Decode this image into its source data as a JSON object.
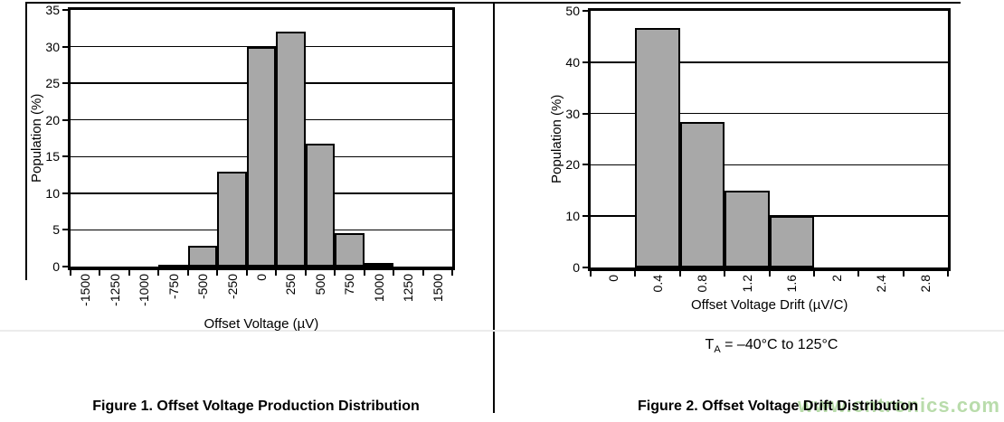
{
  "frame_color": "#000000",
  "watermark": {
    "text": "www.cntronics.com",
    "color": "#b9dcab"
  },
  "chart_data": [
    {
      "type": "bar",
      "title": "",
      "caption": "Figure 1. Offset Voltage Production Distribution",
      "xlabel": "Offset Voltage (µV)",
      "ylabel": "Population (%)",
      "categories": [
        "-1500",
        "-1250",
        "-1000",
        "-750",
        "-500",
        "-250",
        "0",
        "250",
        "500",
        "750",
        "1000",
        "1250",
        "1500"
      ],
      "values": [
        0,
        0,
        0,
        0.3,
        2.8,
        13,
        30,
        32,
        16.8,
        4.5,
        0.5,
        0,
        0
      ],
      "ylim": [
        0,
        35
      ],
      "yticks": [
        0,
        5,
        10,
        15,
        20,
        25,
        30,
        35
      ],
      "grid": true,
      "legend": "none",
      "bar_color": "#a8a8a8",
      "bar_align": "centered-on-tick-label"
    },
    {
      "type": "bar",
      "title": "",
      "caption": "Figure 2. Offset Voltage Drift Distribution",
      "xlabel": "Offset Voltage Drift (µV/C)",
      "ylabel": "Population (%)",
      "categories": [
        "0",
        "0.4",
        "0.8",
        "1.2",
        "1.6",
        "2",
        "2.4",
        "2.8"
      ],
      "values": [
        0,
        46.7,
        28.3,
        15,
        10,
        0,
        0,
        0
      ],
      "ylim": [
        0,
        50
      ],
      "yticks": [
        0,
        10,
        20,
        30,
        40,
        50
      ],
      "grid": true,
      "legend": "none",
      "bar_color": "#a8a8a8",
      "bar_align": "centered-on-tick-label",
      "condition": {
        "t": "T",
        "sub": "A",
        "rest": " = –40°C to 125°C"
      }
    }
  ]
}
